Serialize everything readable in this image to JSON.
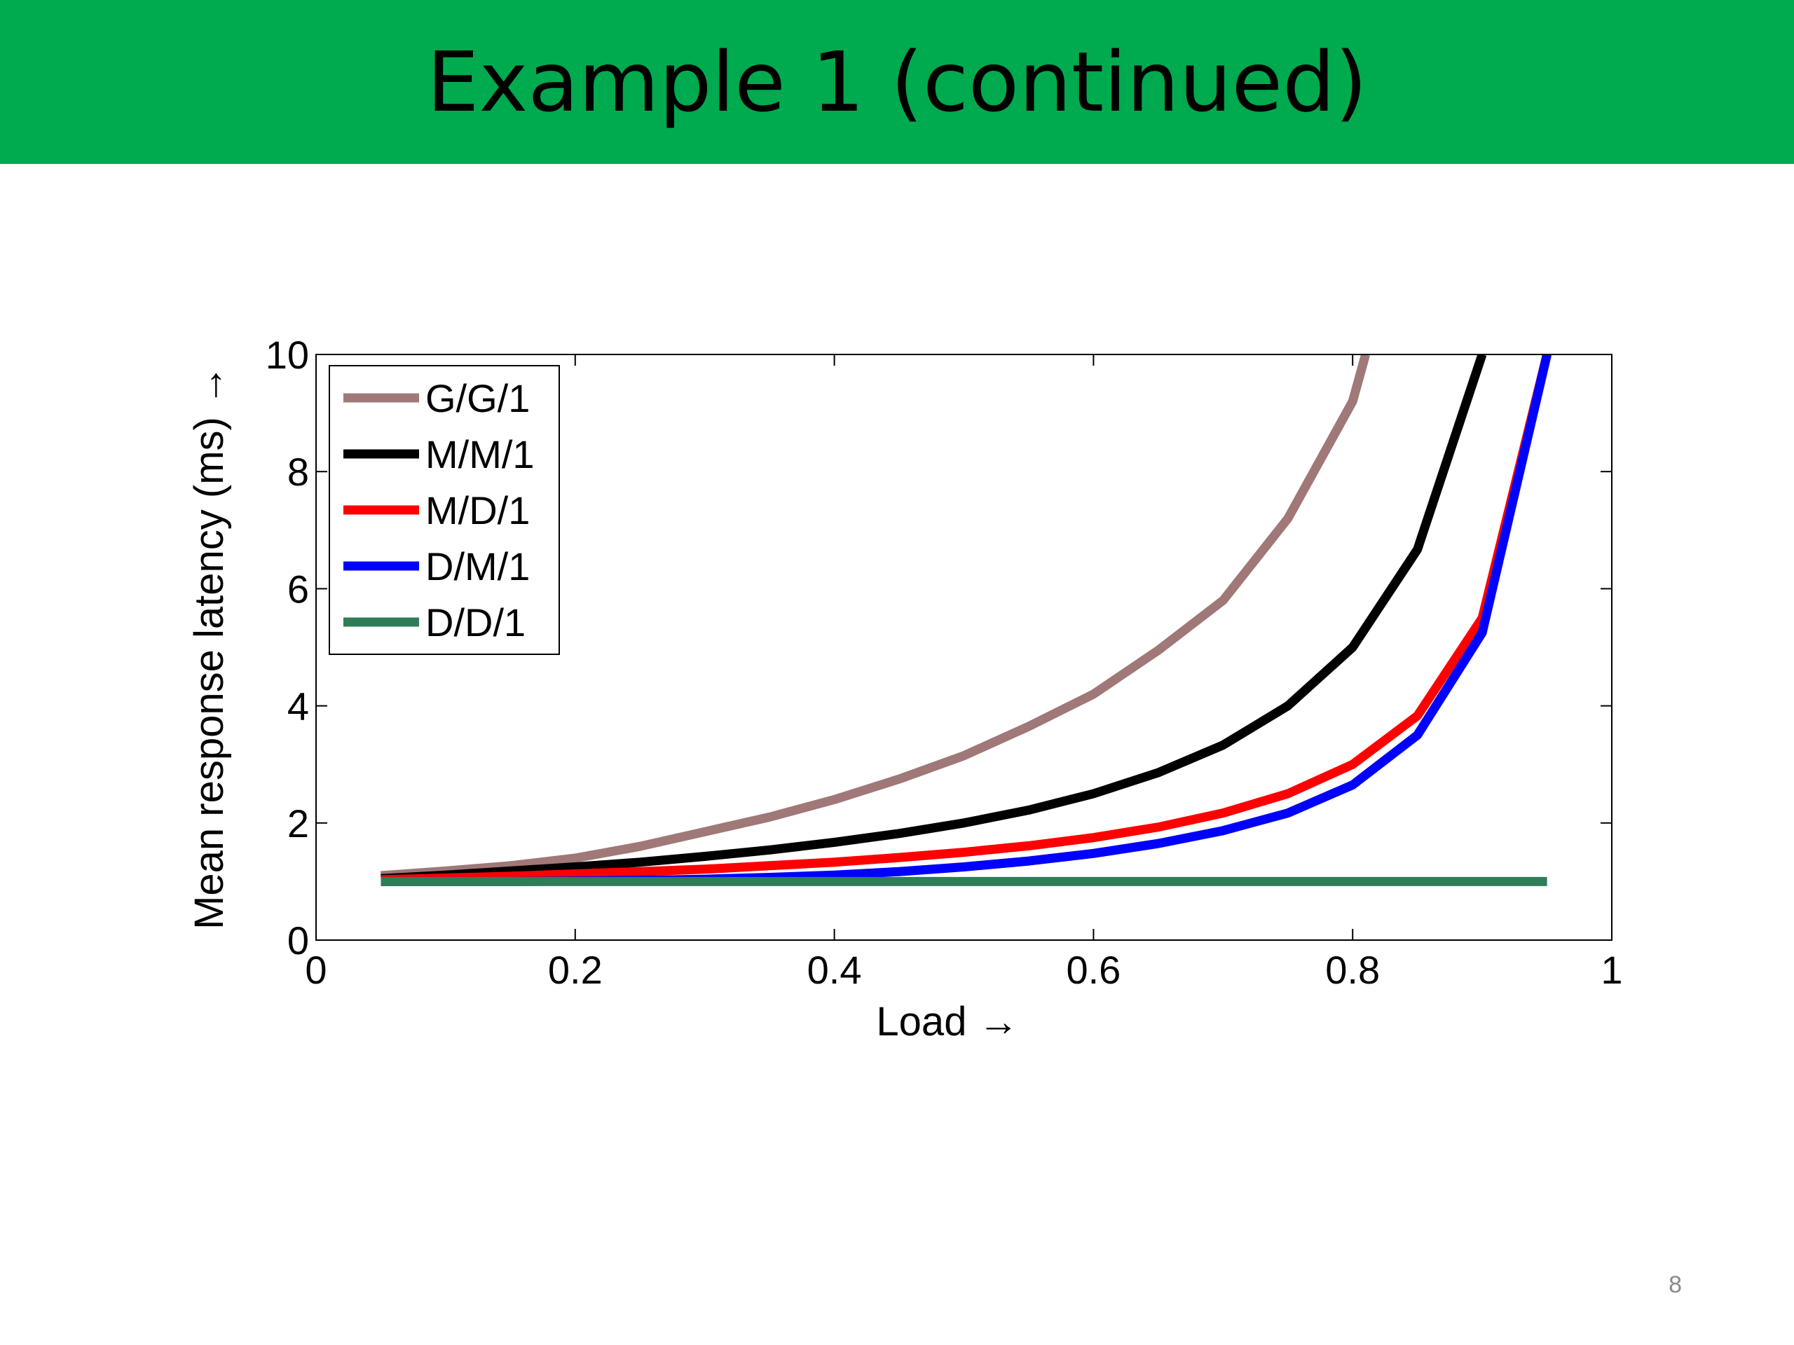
{
  "slide": {
    "title": "Example 1 (continued)",
    "page_number": "8",
    "accent_color": "#00aa4f"
  },
  "chart_data": {
    "type": "line",
    "xlabel": "Load →",
    "ylabel": "Mean response latency (ms) →",
    "xlim": [
      0,
      1
    ],
    "ylim": [
      0,
      10
    ],
    "xticks": [
      0,
      0.2,
      0.4,
      0.6,
      0.8,
      1
    ],
    "xtick_labels": [
      "0",
      "0.2",
      "0.4",
      "0.6",
      "0.8",
      "1"
    ],
    "yticks": [
      0,
      2,
      4,
      6,
      8,
      10
    ],
    "ytick_labels": [
      "0",
      "2",
      "4",
      "6",
      "8",
      "10"
    ],
    "grid": false,
    "legend_position": "top-left",
    "series": [
      {
        "name": "G/G/1",
        "color": "#a07878",
        "x": [
          0.05,
          0.1,
          0.15,
          0.2,
          0.25,
          0.3,
          0.35,
          0.4,
          0.45,
          0.5,
          0.55,
          0.6,
          0.65,
          0.7,
          0.75,
          0.8,
          0.81
        ],
        "y": [
          1.1,
          1.18,
          1.27,
          1.4,
          1.6,
          1.85,
          2.1,
          2.4,
          2.75,
          3.15,
          3.65,
          4.2,
          4.95,
          5.8,
          7.2,
          9.2,
          10
        ]
      },
      {
        "name": "M/M/1",
        "color": "#000000",
        "x": [
          0.05,
          0.1,
          0.15,
          0.2,
          0.25,
          0.3,
          0.35,
          0.4,
          0.45,
          0.5,
          0.55,
          0.6,
          0.65,
          0.7,
          0.75,
          0.8,
          0.85,
          0.9
        ],
        "y": [
          1.05,
          1.11,
          1.18,
          1.25,
          1.33,
          1.43,
          1.54,
          1.67,
          1.82,
          2.0,
          2.22,
          2.5,
          2.86,
          3.33,
          4.0,
          5.0,
          6.67,
          10.0
        ]
      },
      {
        "name": "M/D/1",
        "color": "#ff0000",
        "x": [
          0.05,
          0.1,
          0.15,
          0.2,
          0.25,
          0.3,
          0.35,
          0.4,
          0.45,
          0.5,
          0.55,
          0.6,
          0.65,
          0.7,
          0.75,
          0.8,
          0.85,
          0.9,
          0.95
        ],
        "y": [
          1.03,
          1.06,
          1.09,
          1.13,
          1.17,
          1.21,
          1.27,
          1.33,
          1.41,
          1.5,
          1.61,
          1.75,
          1.93,
          2.17,
          2.5,
          3.0,
          3.83,
          5.5,
          10.0
        ]
      },
      {
        "name": "D/M/1",
        "color": "#0000ff",
        "x": [
          0.05,
          0.1,
          0.15,
          0.2,
          0.25,
          0.3,
          0.35,
          0.4,
          0.45,
          0.5,
          0.55,
          0.6,
          0.65,
          0.7,
          0.75,
          0.8,
          0.85,
          0.9,
          0.95
        ],
        "y": [
          1.0,
          1.0,
          1.0,
          1.01,
          1.02,
          1.04,
          1.07,
          1.11,
          1.17,
          1.25,
          1.35,
          1.48,
          1.65,
          1.87,
          2.17,
          2.65,
          3.5,
          5.25,
          10.0
        ]
      },
      {
        "name": "D/D/1",
        "color": "#2e7d57",
        "x": [
          0.05,
          0.95
        ],
        "y": [
          1.0,
          1.0
        ]
      }
    ]
  }
}
